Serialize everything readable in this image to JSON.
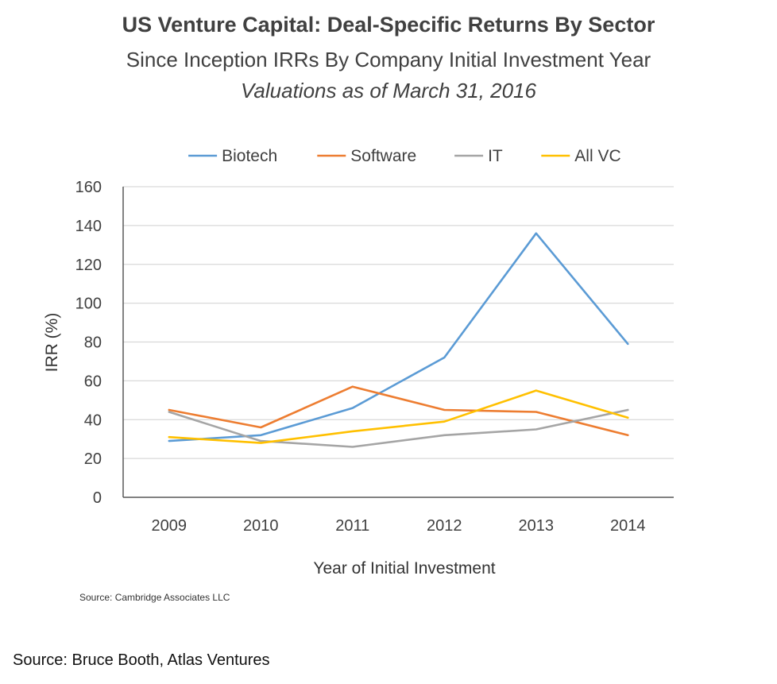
{
  "chart_data": {
    "type": "line",
    "title": "US Venture Capital: Deal-Specific Returns By Sector",
    "subtitle": "Since Inception IRRs By Company Initial Investment Year",
    "note": "Valuations as of March 31, 2016",
    "xlabel": "Year of Initial Investment",
    "ylabel": "IRR (%)",
    "ylim": [
      0,
      160
    ],
    "yticks": [
      "0",
      "20",
      "40",
      "60",
      "80",
      "100",
      "120",
      "140",
      "160"
    ],
    "categories": [
      "2009",
      "2010",
      "2011",
      "2012",
      "2013",
      "2014"
    ],
    "grid": "horizontal",
    "legend_position": "top",
    "series": [
      {
        "name": "Biotech",
        "color": "#5B9BD5",
        "values": [
          29,
          32,
          46,
          72,
          136,
          79
        ]
      },
      {
        "name": "Software",
        "color": "#ED7D31",
        "values": [
          45,
          36,
          57,
          45,
          44,
          32
        ]
      },
      {
        "name": "IT",
        "color": "#A5A5A5",
        "values": [
          44,
          29,
          26,
          32,
          35,
          45
        ]
      },
      {
        "name": "All VC",
        "color": "#FFC000",
        "values": [
          31,
          28,
          34,
          39,
          55,
          41
        ]
      }
    ]
  },
  "source_inner": "Source: Cambridge Associates LLC",
  "source_outer": "Source: Bruce Booth, Atlas Ventures"
}
